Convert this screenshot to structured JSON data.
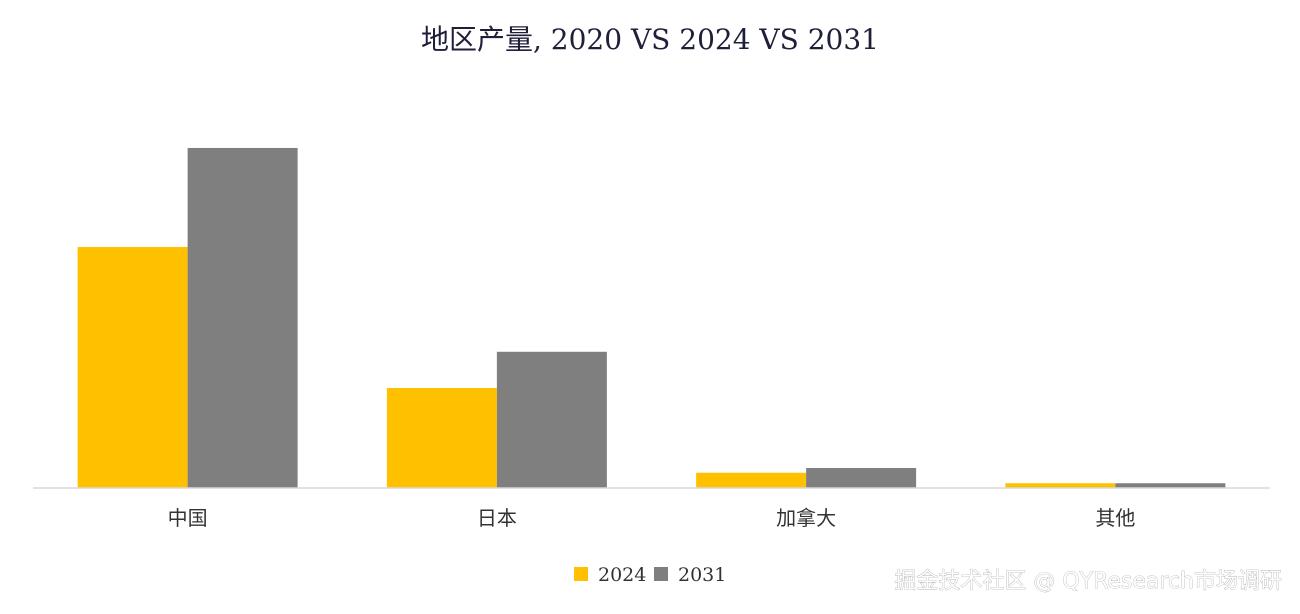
{
  "chart_data": {
    "type": "bar",
    "title": "地区产量, 2020 VS 2024 VS 2031",
    "categories": [
      "中国",
      "日本",
      "加拿大",
      "其他"
    ],
    "series": [
      {
        "name": "2024",
        "color": "#FFC000",
        "values": [
          253,
          105,
          16,
          5
        ]
      },
      {
        "name": "2031",
        "color": "#7F7F7F",
        "values": [
          357,
          143,
          21,
          5
        ]
      }
    ],
    "ylim": [
      0,
      400
    ],
    "grid": false,
    "legend": "bottom-center",
    "axis_color": "#d9d9d9"
  },
  "watermark": "掘金技术社区 @ QYResearch市场调研"
}
